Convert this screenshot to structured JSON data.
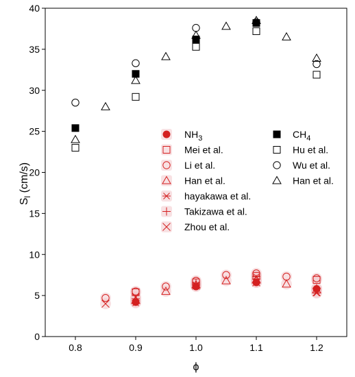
{
  "chart_data": {
    "type": "scatter",
    "xlabel": "ϕ",
    "ylabel_main": "S",
    "ylabel_sub": "l",
    "ylabel_unit": " (cm/s)",
    "xlim": [
      0.75,
      1.25
    ],
    "ylim": [
      0,
      40
    ],
    "xticks": [
      "0.8",
      "0.9",
      "1.0",
      "1.1",
      "1.2"
    ],
    "yticks": [
      "0",
      "5",
      "10",
      "15",
      "20",
      "25",
      "30",
      "35",
      "40"
    ],
    "grid": false,
    "legend_position": "center-right",
    "colors": {
      "nh3": "#d42020",
      "ch4": "#000000",
      "halo": "#f2c8cc"
    },
    "series": [
      {
        "name": "NH",
        "sub": "3",
        "marker": "filled-circle",
        "group": "nh3",
        "points": [
          [
            0.9,
            4.2
          ],
          [
            1.0,
            6.1
          ],
          [
            1.1,
            6.6
          ],
          [
            1.2,
            5.8
          ]
        ]
      },
      {
        "name": "Mei et al.",
        "marker": "open-square",
        "group": "nh3",
        "points": [
          [
            0.9,
            5.4
          ],
          [
            1.0,
            6.6
          ],
          [
            1.1,
            7.4
          ],
          [
            1.2,
            6.9
          ]
        ]
      },
      {
        "name": "Li et al.",
        "marker": "open-circle",
        "group": "nh3",
        "points": [
          [
            0.85,
            4.7
          ],
          [
            0.9,
            5.5
          ],
          [
            0.95,
            6.1
          ],
          [
            1.0,
            6.8
          ],
          [
            1.05,
            7.5
          ],
          [
            1.1,
            7.7
          ],
          [
            1.15,
            7.3
          ],
          [
            1.2,
            7.1
          ]
        ]
      },
      {
        "name": "Han et al.",
        "marker": "open-triangle",
        "group": "nh3",
        "points": [
          [
            0.9,
            4.4
          ],
          [
            0.95,
            5.5
          ],
          [
            1.0,
            6.3
          ],
          [
            1.05,
            6.8
          ],
          [
            1.1,
            6.9
          ],
          [
            1.15,
            6.4
          ],
          [
            1.2,
            5.7
          ]
        ]
      },
      {
        "name": "hayakawa  et al.",
        "marker": "asterisk",
        "group": "nh3",
        "points": [
          [
            0.9,
            4.1
          ],
          [
            1.0,
            6.3
          ],
          [
            1.1,
            7.3
          ],
          [
            1.2,
            5.3
          ]
        ]
      },
      {
        "name": "Takizawa  et al.",
        "marker": "plus",
        "group": "nh3",
        "points": [
          [
            0.9,
            4.6
          ],
          [
            1.0,
            6.5
          ],
          [
            1.1,
            7.0
          ],
          [
            1.2,
            5.9
          ]
        ]
      },
      {
        "name": "Zhou et al.",
        "marker": "x-cross",
        "group": "nh3",
        "points": [
          [
            0.85,
            4.0
          ],
          [
            0.9,
            4.8
          ],
          [
            1.0,
            6.2
          ],
          [
            1.1,
            6.6
          ],
          [
            1.2,
            5.4
          ]
        ]
      },
      {
        "name": "CH",
        "sub": "4",
        "marker": "filled-square",
        "group": "ch4",
        "points": [
          [
            0.8,
            25.4
          ],
          [
            0.9,
            32.0
          ],
          [
            1.0,
            36.2
          ],
          [
            1.1,
            38.2
          ]
        ]
      },
      {
        "name": "Hu et al.",
        "marker": "open-square",
        "group": "ch4",
        "points": [
          [
            0.8,
            23.0
          ],
          [
            0.9,
            29.2
          ],
          [
            1.0,
            35.3
          ],
          [
            1.1,
            37.2
          ],
          [
            1.2,
            31.9
          ]
        ]
      },
      {
        "name": "Wu et al.",
        "marker": "open-circle",
        "group": "ch4",
        "points": [
          [
            0.8,
            28.5
          ],
          [
            0.9,
            33.3
          ],
          [
            1.0,
            37.6
          ],
          [
            1.1,
            38.3
          ],
          [
            1.2,
            33.2
          ]
        ]
      },
      {
        "name": "Han et al.",
        "marker": "open-triangle",
        "group": "ch4",
        "points": [
          [
            0.8,
            24.0
          ],
          [
            0.85,
            28.0
          ],
          [
            0.9,
            31.2
          ],
          [
            0.95,
            34.1
          ],
          [
            1.0,
            36.7
          ],
          [
            1.05,
            37.8
          ],
          [
            1.1,
            38.5
          ],
          [
            1.15,
            36.5
          ],
          [
            1.2,
            33.9
          ]
        ]
      }
    ]
  }
}
